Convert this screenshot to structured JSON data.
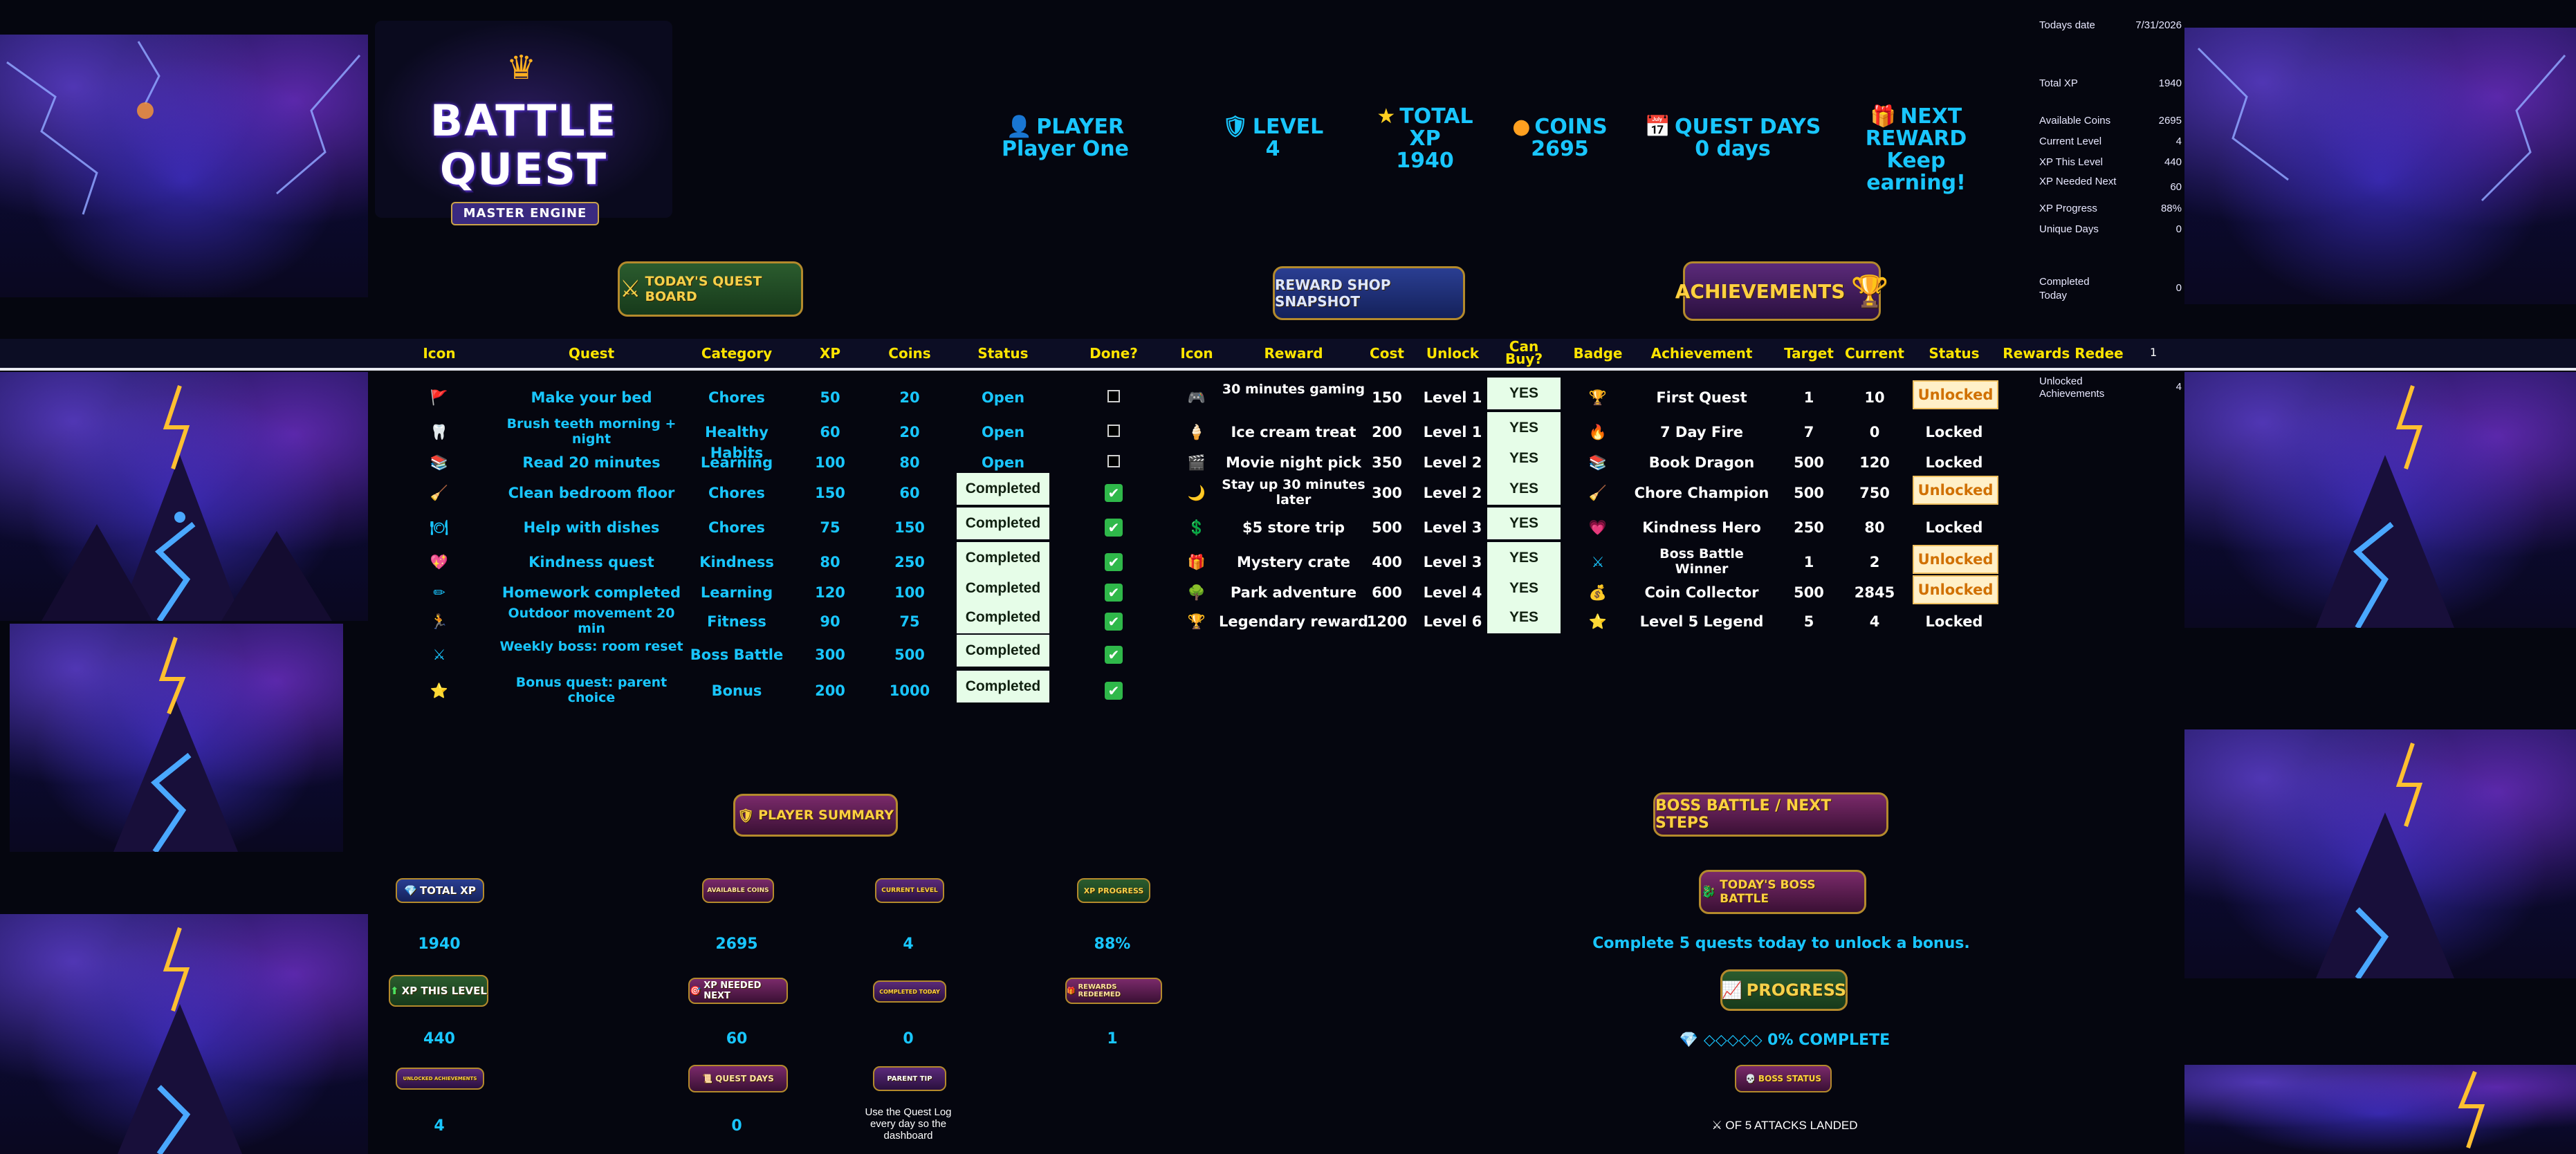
{
  "logo": {
    "line1": "BATTLE",
    "line2": "QUEST",
    "subtitle": "MASTER ENGINE"
  },
  "header": {
    "player": {
      "label": "PLAYER",
      "value": "Player One"
    },
    "level": {
      "label": "LEVEL",
      "value": "4"
    },
    "total_xp": {
      "label": "TOTAL XP",
      "value": "1940"
    },
    "coins": {
      "label": "COINS",
      "value": "2695"
    },
    "quest_days": {
      "label": "QUEST DAYS",
      "value": "0 days"
    },
    "next_reward": {
      "label": "NEXT REWARD",
      "value": "Keep earning!"
    }
  },
  "info": {
    "todays_date_label": "Todays date",
    "todays_date": "7/31/2026",
    "total_xp_label": "Total XP",
    "total_xp": "1940",
    "available_coins_label": "Available Coins",
    "available_coins": "2695",
    "current_level_label": "Current Level",
    "current_level": "4",
    "xp_this_level_label": "XP This Level",
    "xp_this_level": "440",
    "xp_needed_next_label": "XP Needed Next",
    "xp_needed_next": "60",
    "xp_progress_label": "XP Progress",
    "xp_progress": "88%",
    "unique_days_label": "Unique Days",
    "unique_days": "0",
    "completed_today_label": "Completed Today",
    "completed_today": "0",
    "unlocked_achievements_label": "Unlocked Achievements",
    "unlocked_achievements": "4",
    "rewards_redeemed_count": "1"
  },
  "sections": {
    "quest_board": "TODAY'S QUEST BOARD",
    "reward_shop": "REWARD SHOP SNAPSHOT",
    "achievements": "ACHIEVEMENTS",
    "player_summary": "PLAYER SUMMARY",
    "boss_battle": "BOSS BATTLE / NEXT STEPS"
  },
  "columns": {
    "quest": [
      "Icon",
      "Quest",
      "Category",
      "XP",
      "Coins",
      "Status",
      "Done?"
    ],
    "reward": [
      "Icon",
      "Reward",
      "Cost",
      "Unlock",
      "Can Buy?"
    ],
    "achievement": [
      "Badge",
      "Achievement",
      "Target",
      "Current",
      "Status",
      "Rewards Redee"
    ]
  },
  "quests": [
    {
      "icon": "🚩",
      "name": "Make your bed",
      "category": "Chores",
      "xp": "50",
      "coins": "20",
      "status": "Open",
      "done": false
    },
    {
      "icon": "🦷",
      "name": "Brush teeth morning + night",
      "category": "Healthy Habits",
      "xp": "60",
      "coins": "20",
      "status": "Open",
      "done": false
    },
    {
      "icon": "📚",
      "name": "Read 20 minutes",
      "category": "Learning",
      "xp": "100",
      "coins": "80",
      "status": "Open",
      "done": false
    },
    {
      "icon": "🧹",
      "name": "Clean bedroom floor",
      "category": "Chores",
      "xp": "150",
      "coins": "60",
      "status": "Completed",
      "done": true
    },
    {
      "icon": "🍽",
      "name": "Help with dishes",
      "category": "Chores",
      "xp": "75",
      "coins": "150",
      "status": "Completed",
      "done": true
    },
    {
      "icon": "💖",
      "name": "Kindness quest",
      "category": "Kindness",
      "xp": "80",
      "coins": "250",
      "status": "Completed",
      "done": true
    },
    {
      "icon": "✏",
      "name": "Homework completed",
      "category": "Learning",
      "xp": "120",
      "coins": "100",
      "status": "Completed",
      "done": true
    },
    {
      "icon": "🏃",
      "name": "Outdoor movement 20 min",
      "category": "Fitness",
      "xp": "90",
      "coins": "75",
      "status": "Completed",
      "done": true
    },
    {
      "icon": "⚔",
      "name": "Weekly boss: room reset",
      "category": "Boss Battle",
      "xp": "300",
      "coins": "500",
      "status": "Completed",
      "done": true
    },
    {
      "icon": "⭐",
      "name": "Bonus quest: parent choice",
      "category": "Bonus",
      "xp": "200",
      "coins": "1000",
      "status": "Completed",
      "done": true
    }
  ],
  "rewards": [
    {
      "icon": "🎮",
      "name": "30 minutes gaming",
      "cost": "150",
      "unlock": "Level 1",
      "can_buy": "YES"
    },
    {
      "icon": "🍦",
      "name": "Ice cream treat",
      "cost": "200",
      "unlock": "Level 1",
      "can_buy": "YES"
    },
    {
      "icon": "🎬",
      "name": "Movie night pick",
      "cost": "350",
      "unlock": "Level 2",
      "can_buy": "YES"
    },
    {
      "icon": "🌙",
      "name": "Stay up 30 minutes later",
      "cost": "300",
      "unlock": "Level 2",
      "can_buy": "YES"
    },
    {
      "icon": "💲",
      "name": "$5 store trip",
      "cost": "500",
      "unlock": "Level 3",
      "can_buy": "YES"
    },
    {
      "icon": "🎁",
      "name": "Mystery crate",
      "cost": "400",
      "unlock": "Level 3",
      "can_buy": "YES"
    },
    {
      "icon": "🌳",
      "name": "Park adventure",
      "cost": "600",
      "unlock": "Level 4",
      "can_buy": "YES"
    },
    {
      "icon": "🏆",
      "name": "Legendary reward",
      "cost": "1200",
      "unlock": "Level 6",
      "can_buy": "YES"
    }
  ],
  "achievements": [
    {
      "icon": "🏆",
      "name": "First Quest",
      "target": "1",
      "current": "10",
      "status": "Unlocked"
    },
    {
      "icon": "🔥",
      "name": "7 Day Fire",
      "target": "7",
      "current": "0",
      "status": "Locked"
    },
    {
      "icon": "📚",
      "name": "Book Dragon",
      "target": "500",
      "current": "120",
      "status": "Locked"
    },
    {
      "icon": "🧹",
      "name": "Chore Champion",
      "target": "500",
      "current": "750",
      "status": "Unlocked"
    },
    {
      "icon": "💗",
      "name": "Kindness Hero",
      "target": "250",
      "current": "80",
      "status": "Locked"
    },
    {
      "icon": "⚔",
      "name": "Boss Battle Winner",
      "target": "1",
      "current": "2",
      "status": "Unlocked"
    },
    {
      "icon": "💰",
      "name": "Coin Collector",
      "target": "500",
      "current": "2845",
      "status": "Unlocked"
    },
    {
      "icon": "⭐",
      "name": "Level 5 Legend",
      "target": "5",
      "current": "4",
      "status": "Locked"
    }
  ],
  "summary": {
    "total_xp_label": "TOTAL XP",
    "total_xp": "1940",
    "available_coins_label": "AVAILABLE COINS",
    "available_coins": "2695",
    "current_level_label": "CURRENT LEVEL",
    "current_level": "4",
    "xp_progress_label": "XP PROGRESS",
    "xp_progress": "88%",
    "xp_this_level_label": "XP THIS LEVEL",
    "xp_this_level": "440",
    "xp_needed_next_label": "XP NEEDED NEXT",
    "xp_needed_next": "60",
    "completed_today_label": "COMPLETED TODAY",
    "completed_today": "0",
    "rewards_redeemed_label": "REWARDS REDEEMED",
    "rewards_redeemed": "1",
    "unlocked_achievements_label": "UNLOCKED ACHIEVEMENTS",
    "unlocked_achievements": "4",
    "quest_days_label": "QUEST DAYS",
    "quest_days": "0",
    "parent_tip_label": "PARENT TIP",
    "parent_tip": "Use the Quest Log every day so the dashboard"
  },
  "boss": {
    "todays_boss_label": "TODAY'S BOSS BATTLE",
    "todays_boss_text": "Complete 5 quests today to unlock a bonus.",
    "progress_label": "PROGRESS",
    "progress_text": "◇◇◇◇◇ 0% COMPLETE",
    "status_label": "BOSS STATUS",
    "status_text": "OF 5 ATTACKS LANDED"
  },
  "colors": {
    "accent": "#19c6ff",
    "header_yellow": "#ffe400",
    "background": "#05060f",
    "completed_bg": "#e6fde8",
    "unlocked_bg": "#fff0c8"
  }
}
